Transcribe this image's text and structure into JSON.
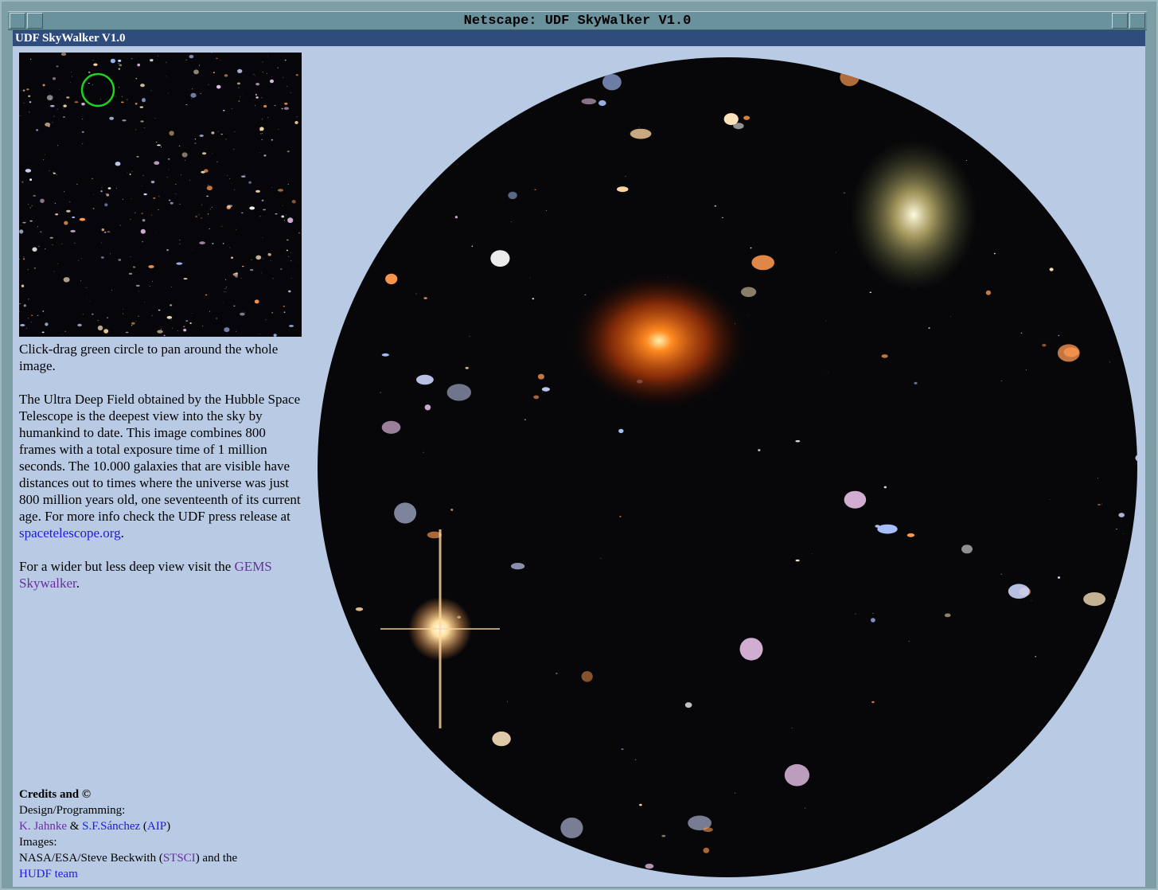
{
  "window": {
    "title": "Netscape: UDF SkyWalker V1.0"
  },
  "page": {
    "heading": "UDF SkyWalker V1.0",
    "instructions": "Click-drag green circle to pan around the whole image.",
    "description": [
      "The Ultra Deep Field obtained by the Hubble Space Telescope is the deepest view into the sky by humankind to date. This image combines 800 frames with a total exposure time of 1 million seconds. The 10.000 galaxies that are visible have distances out to times where the universe was just 800 million years old, one seventeenth of its current age. For more info check the UDF press release at ",
      "spacetelescope.org",
      "."
    ],
    "wider": [
      "For a wider but less deep view visit the ",
      "GEMS Skywalker",
      "."
    ],
    "credits": {
      "heading": "Credits and ©",
      "design_label": "Design/Programming:",
      "design": [
        "K. Jahnke",
        " & ",
        "S.F.Sánchez",
        " (",
        "AIP",
        ")"
      ],
      "images_label": "Images:",
      "images": [
        "NASA/ESA/Steve Beckwith (",
        "STSCI",
        ") and the ",
        "HUDF team"
      ]
    }
  }
}
